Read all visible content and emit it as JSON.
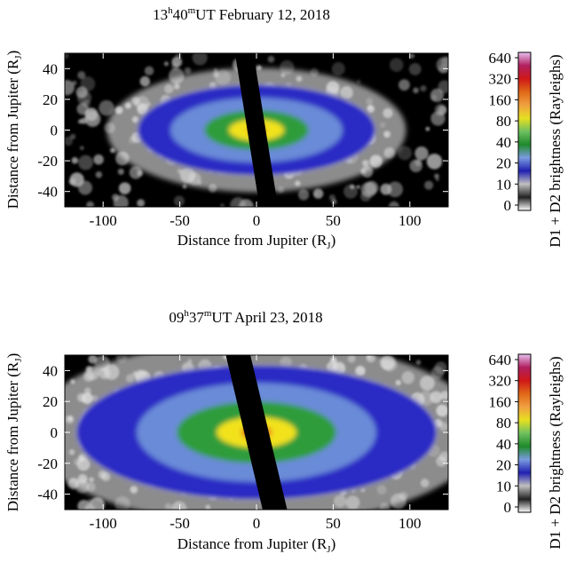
{
  "chart_data": [
    {
      "type": "heatmap",
      "title": {
        "hour": "13",
        "minute": "40",
        "suffix": "UT February 12, 2018"
      },
      "xlabel": {
        "text": "Distance from Jupiter (R",
        "sub": "J",
        "close": ")"
      },
      "ylabel": {
        "text": "Distance from Jupiter (R",
        "sub": "J",
        "close": ")"
      },
      "xlim": [
        -125,
        125
      ],
      "ylim": [
        -50,
        50
      ],
      "xticks": [
        -100,
        -50,
        0,
        50,
        100
      ],
      "yticks": [
        -40,
        -20,
        0,
        20,
        40
      ],
      "colorbar": {
        "label": "D1 + D2 brightness (Rayleighs)",
        "scale": "log2",
        "ticks": [
          "640",
          "320",
          "160",
          "80",
          "40",
          "20",
          "10",
          "0"
        ]
      },
      "features": {
        "occulting_strip": {
          "x_at_top": -8,
          "x_at_bottom": 8,
          "half_width": 6
        },
        "cloud_levels_R": [
          {
            "level": "10",
            "half_width_x": 78,
            "half_height_y": 30
          },
          {
            "level": "20",
            "half_width_x": 56,
            "half_height_y": 21
          },
          {
            "level": "40",
            "half_width_x": 34,
            "half_height_y": 13
          },
          {
            "level": "80",
            "half_width_x": 18,
            "half_height_y": 7
          },
          {
            "level": "160",
            "half_width_x": 6,
            "half_height_y": 3
          }
        ]
      }
    },
    {
      "type": "heatmap",
      "title": {
        "hour": "09",
        "minute": "37",
        "suffix": "UT April 23, 2018"
      },
      "xlabel": {
        "text": "Distance from Jupiter (R",
        "sub": "J",
        "close": ")"
      },
      "ylabel": {
        "text": "Distance from Jupiter (R",
        "sub": "J",
        "close": ")"
      },
      "xlim": [
        -125,
        125
      ],
      "ylim": [
        -50,
        50
      ],
      "xticks": [
        -100,
        -50,
        0,
        50,
        100
      ],
      "yticks": [
        -40,
        -20,
        0,
        20,
        40
      ],
      "colorbar": {
        "label": "D1 + D2 brightness (Rayleighs)",
        "scale": "log2",
        "ticks": [
          "640",
          "320",
          "160",
          "80",
          "40",
          "20",
          "10",
          "0"
        ]
      },
      "features": {
        "occulting_strip": {
          "x_at_top": -12,
          "x_at_bottom": 12,
          "half_width": 8
        },
        "cloud_levels_R": [
          {
            "level": "10",
            "half_width_x": 118,
            "half_height_y": 44
          },
          {
            "level": "20",
            "half_width_x": 78,
            "half_height_y": 32
          },
          {
            "level": "40",
            "half_width_x": 52,
            "half_height_y": 20
          },
          {
            "level": "80",
            "half_width_x": 26,
            "half_height_y": 10
          },
          {
            "level": "160",
            "half_width_x": 10,
            "half_height_y": 5
          }
        ]
      }
    }
  ],
  "palette": {
    "background": "#000000",
    "noise_light": "#bdbdbd",
    "level_colors": [
      "#ffffff",
      "#2c2cc4",
      "#6a8bd8",
      "#2e9c3a",
      "#f2e21a",
      "#e8801e",
      "#d62a1e",
      "#e2b8ec"
    ],
    "colorbar_colors": [
      "#ffffff",
      "#222222",
      "#c0c0c0",
      "#2020b0",
      "#7a9be0",
      "#1f8a2b",
      "#6fc060",
      "#e6e020",
      "#f0a040",
      "#e06818",
      "#d01818",
      "#b02060",
      "#e8c0f0"
    ]
  }
}
